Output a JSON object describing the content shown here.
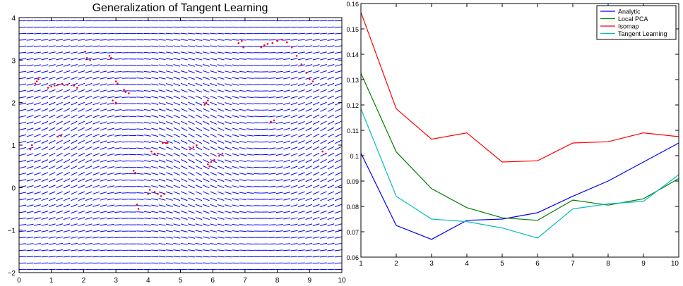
{
  "colors": {
    "axis": "#000000",
    "tangent_field": "#0000ff",
    "training_points": "#ff0000",
    "analytic": "#0000ff",
    "local_pca": "#007f00",
    "isomap": "#ff0000",
    "tangent_learning": "#00bfbf"
  },
  "chart_data": [
    {
      "type": "vector-field",
      "title": "Generalization of Tangent Learning",
      "xlabel": "",
      "ylabel": "",
      "xlim": [
        0,
        10
      ],
      "ylim": [
        -2,
        4
      ],
      "xticks": [
        0,
        1,
        2,
        3,
        4,
        5,
        6,
        7,
        8,
        9,
        10
      ],
      "yticks": [
        -2,
        -1,
        0,
        1,
        2,
        3,
        4
      ],
      "grid": false,
      "field": {
        "description": "short blue tangent segments on a regular grid, oriented along the local tangent of a sinusoidal family of curves",
        "columns": 44,
        "rows": 40,
        "amplitude": 0.5,
        "period": 8.0
      },
      "training_points": [
        [
          0.5,
          2.45
        ],
        [
          0.55,
          2.5
        ],
        [
          0.6,
          2.55
        ],
        [
          0.9,
          2.35
        ],
        [
          1.0,
          2.38
        ],
        [
          1.1,
          2.4
        ],
        [
          1.2,
          2.42
        ],
        [
          1.35,
          2.43
        ],
        [
          1.5,
          2.42
        ],
        [
          1.7,
          2.4
        ],
        [
          1.8,
          2.35
        ],
        [
          2.05,
          3.2
        ],
        [
          2.1,
          3.05
        ],
        [
          2.2,
          3.0
        ],
        [
          2.8,
          3.1
        ],
        [
          2.85,
          3.05
        ],
        [
          3.0,
          2.5
        ],
        [
          3.05,
          2.45
        ],
        [
          3.25,
          2.3
        ],
        [
          3.3,
          2.25
        ],
        [
          3.4,
          2.22
        ],
        [
          3.0,
          2.0
        ],
        [
          2.9,
          2.05
        ],
        [
          3.55,
          0.4
        ],
        [
          3.6,
          0.35
        ],
        [
          3.65,
          -0.4
        ],
        [
          3.7,
          -0.5
        ],
        [
          4.1,
          0.85
        ],
        [
          4.2,
          0.8
        ],
        [
          4.3,
          0.8
        ],
        [
          4.45,
          1.05
        ],
        [
          4.55,
          1.05
        ],
        [
          4.6,
          1.05
        ],
        [
          4.0,
          -0.15
        ],
        [
          4.05,
          -0.05
        ],
        [
          4.2,
          -0.1
        ],
        [
          4.3,
          -0.15
        ],
        [
          4.4,
          -0.2
        ],
        [
          4.5,
          -0.15
        ],
        [
          5.3,
          0.9
        ],
        [
          5.4,
          0.95
        ],
        [
          5.5,
          1.0
        ],
        [
          5.85,
          0.55
        ],
        [
          5.9,
          0.5
        ],
        [
          5.95,
          0.6
        ],
        [
          6.05,
          0.65
        ],
        [
          6.2,
          0.75
        ],
        [
          6.3,
          0.8
        ],
        [
          5.75,
          1.95
        ],
        [
          5.8,
          2.0
        ],
        [
          5.85,
          2.05
        ],
        [
          6.8,
          3.4
        ],
        [
          6.9,
          3.45
        ],
        [
          6.95,
          3.3
        ],
        [
          7.5,
          3.3
        ],
        [
          7.6,
          3.35
        ],
        [
          7.7,
          3.38
        ],
        [
          7.85,
          3.4
        ],
        [
          8.0,
          3.45
        ],
        [
          8.15,
          3.48
        ],
        [
          8.3,
          3.42
        ],
        [
          8.45,
          3.3
        ],
        [
          8.6,
          3.1
        ],
        [
          8.75,
          2.9
        ],
        [
          8.9,
          2.7
        ],
        [
          7.8,
          1.55
        ],
        [
          7.9,
          1.58
        ],
        [
          9.0,
          2.55
        ],
        [
          9.1,
          2.5
        ],
        [
          9.4,
          0.85
        ],
        [
          9.5,
          0.8
        ],
        [
          0.35,
          0.9
        ],
        [
          0.4,
          1.0
        ],
        [
          1.2,
          1.2
        ],
        [
          1.3,
          1.22
        ]
      ]
    },
    {
      "type": "line",
      "title": "",
      "xlabel": "",
      "ylabel": "",
      "x": [
        1,
        2,
        3,
        4,
        5,
        6,
        7,
        8,
        9,
        10
      ],
      "xlim": [
        1,
        10
      ],
      "ylim": [
        0.06,
        0.16
      ],
      "xticks": [
        1,
        2,
        3,
        4,
        5,
        6,
        7,
        8,
        9,
        10
      ],
      "yticks": [
        0.06,
        0.07,
        0.08,
        0.09,
        0.1,
        0.11,
        0.12,
        0.13,
        0.14,
        0.15,
        0.16
      ],
      "grid": false,
      "legend_position": "top-right",
      "series": [
        {
          "name": "Analytic",
          "color": "#0000ff",
          "values": [
            0.101,
            0.0725,
            0.067,
            0.0745,
            0.075,
            0.0775,
            0.084,
            0.09,
            0.0975,
            0.105
          ]
        },
        {
          "name": "Local PCA",
          "color": "#007f00",
          "values": [
            0.1325,
            0.1015,
            0.087,
            0.0795,
            0.0755,
            0.0745,
            0.0825,
            0.0805,
            0.083,
            0.091
          ]
        },
        {
          "name": "Isomap",
          "color": "#ff0000",
          "values": [
            0.1565,
            0.1185,
            0.1065,
            0.109,
            0.0975,
            0.098,
            0.105,
            0.1055,
            0.109,
            0.1075
          ]
        },
        {
          "name": "Tangent Learning",
          "color": "#00bfbf",
          "values": [
            0.1185,
            0.084,
            0.075,
            0.074,
            0.0715,
            0.0675,
            0.079,
            0.081,
            0.082,
            0.0925
          ]
        }
      ]
    }
  ]
}
